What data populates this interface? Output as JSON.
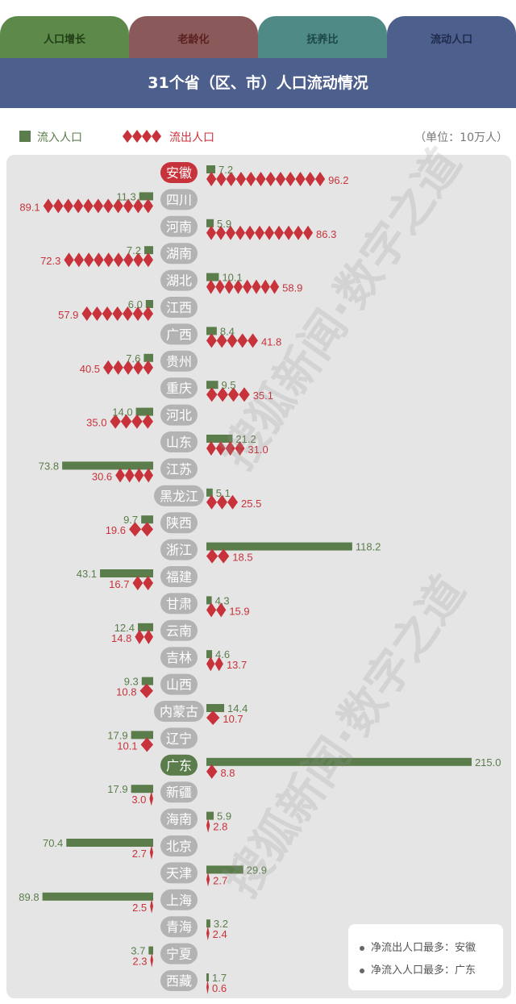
{
  "tabs": [
    "人口增长",
    "老龄化",
    "抚养比",
    "流动人口"
  ],
  "title": "31个省（区、市）人口流动情况",
  "legend": {
    "inflow": "流入人口",
    "outflow": "流出人口"
  },
  "unit": "（单位：10万人）",
  "notes": [
    "净流出人口最多：安徽",
    "净流入人口最多：广东"
  ],
  "colors": {
    "inflow": "#5a7d4b",
    "outflow": "#c8323a",
    "pill": "#b3b3b3",
    "pill_out": "#c8323a",
    "pill_in": "#5a7d4b"
  },
  "chart_data": {
    "type": "bar",
    "categories": [
      "安徽",
      "四川",
      "河南",
      "湖南",
      "湖北",
      "江西",
      "广西",
      "贵州",
      "重庆",
      "河北",
      "山东",
      "江苏",
      "黑龙江",
      "陕西",
      "浙江",
      "福建",
      "甘肃",
      "云南",
      "吉林",
      "山西",
      "内蒙古",
      "辽宁",
      "广东",
      "新疆",
      "海南",
      "北京",
      "天津",
      "上海",
      "青海",
      "宁夏",
      "西藏"
    ],
    "series": [
      {
        "name": "流入人口",
        "values": [
          7.2,
          11.3,
          5.9,
          7.2,
          10.1,
          6.0,
          8.4,
          7.6,
          9.5,
          14.0,
          21.2,
          73.8,
          5.1,
          9.7,
          118.2,
          43.1,
          4.3,
          12.4,
          4.6,
          9.3,
          14.4,
          17.9,
          215.0,
          17.9,
          5.9,
          70.4,
          29.9,
          89.8,
          3.2,
          3.7,
          1.7
        ]
      },
      {
        "name": "流出人口",
        "values": [
          96.2,
          89.1,
          86.3,
          72.3,
          58.9,
          57.9,
          41.8,
          40.5,
          35.1,
          35.0,
          31.0,
          30.6,
          25.5,
          19.6,
          18.5,
          16.7,
          15.9,
          14.8,
          13.7,
          10.8,
          10.7,
          10.1,
          8.8,
          3.0,
          2.8,
          2.7,
          2.7,
          2.5,
          2.4,
          2.3,
          0.6
        ]
      }
    ],
    "sides": [
      "right",
      "left",
      "right",
      "left",
      "right",
      "left",
      "right",
      "left",
      "right",
      "left",
      "right",
      "left",
      "right",
      "left",
      "right",
      "left",
      "right",
      "left",
      "right",
      "left",
      "right",
      "left",
      "right",
      "left",
      "right",
      "left",
      "right",
      "left",
      "right",
      "left",
      "right"
    ],
    "value_labels_in": [
      "7.2",
      "11.3",
      "5.9",
      "7.2",
      "10.1",
      "6.0",
      "8.4",
      "7.6",
      "9.5",
      "14.0",
      "21.2",
      "73.8",
      "5.1",
      "9.7",
      "118.2",
      "43.1",
      "4.3",
      "12.4",
      "4.6",
      "9.3",
      "14.4",
      "17.9",
      "215.0",
      "17.9",
      "5.9",
      "70.4",
      "29.9",
      "89.8",
      "3.2",
      "3.7",
      "1.7"
    ],
    "value_labels_out": [
      "96.2",
      "89.1",
      "86.3",
      "72.3",
      "58.9",
      "57.9",
      "41.8",
      "40.5",
      "35.1",
      "35.0",
      "31.0",
      "30.6",
      "25.5",
      "19.6",
      "18.5",
      "16.7",
      "15.9",
      "14.8",
      "13.7",
      "10.8",
      "10.7",
      "10.1",
      "8.8",
      "3.0",
      "2.8",
      "2.7",
      "2.7",
      "2.5",
      "2.4",
      "2.3",
      "0.6"
    ],
    "highlight": {
      "net_outflow_max": "安徽",
      "net_inflow_max": "广东"
    }
  }
}
